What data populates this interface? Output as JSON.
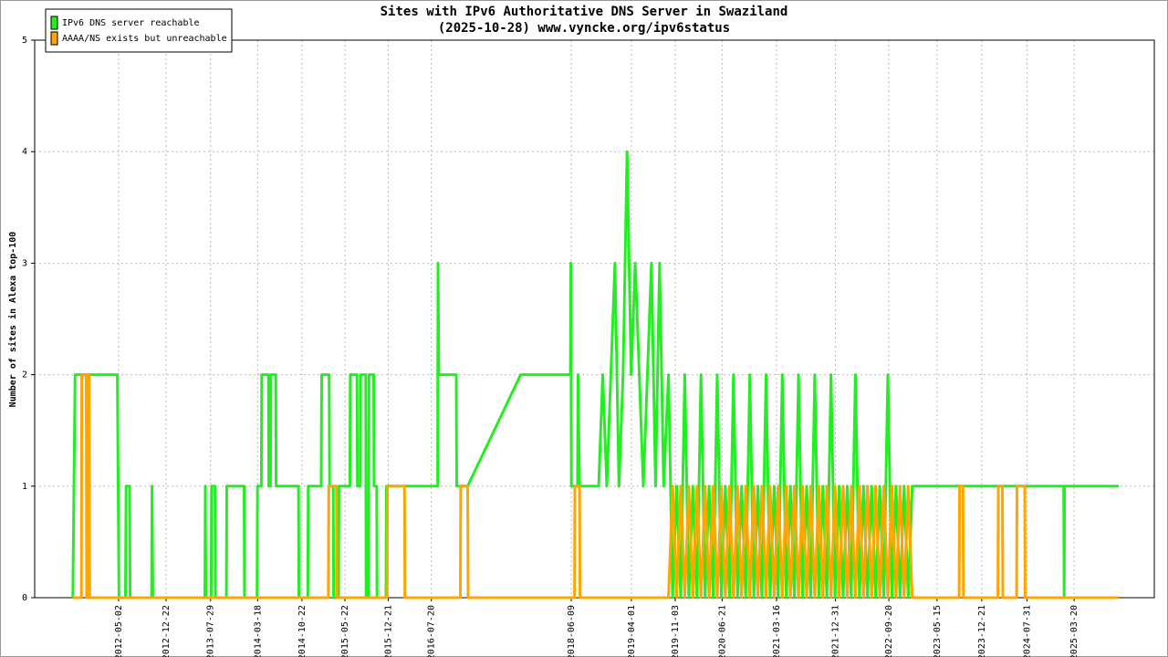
{
  "chart_data": {
    "type": "line",
    "title": "Sites with IPv6 Authoritative DNS Server in Swaziland",
    "subtitle": "(2025-10-28) www.vyncke.org/ipv6status",
    "y_label": "Number of sites in Alexa top-100",
    "xlim": [
      "2011-03-16",
      "2026-04-19"
    ],
    "xticks": [
      "2012-05-02",
      "2012-12-22",
      "2013-07-29",
      "2014-03-18",
      "2014-10-22",
      "2015-05-22",
      "2015-12-21",
      "2016-07-20",
      "2018-06-09",
      "2019-04-01",
      "2019-11-03",
      "2020-06-21",
      "2021-03-16",
      "2021-12-31",
      "2022-09-20",
      "2023-05-15",
      "2023-12-21",
      "2024-07-31",
      "2025-03-20"
    ],
    "ylim": [
      0,
      5
    ],
    "yticks": [
      0,
      1,
      2,
      3,
      4,
      5
    ],
    "grid": true,
    "legend": "upper left",
    "series": [
      {
        "name": "IPv6 DNS server reachable",
        "color": "#22ee22",
        "x": [
          "2011-09-20",
          "2011-10-01",
          "2012-04-26",
          "2012-05-04",
          "2012-06-05",
          "2012-06-08",
          "2012-06-25",
          "2012-06-28",
          "2012-10-12",
          "2012-10-14",
          "2012-10-18",
          "2013-07-01",
          "2013-07-03",
          "2013-07-06",
          "2013-08-01",
          "2013-08-03",
          "2013-08-20",
          "2013-08-22",
          "2013-10-15",
          "2013-10-17",
          "2014-01-10",
          "2014-01-12",
          "2014-03-15",
          "2014-03-17",
          "2014-04-05",
          "2014-04-07",
          "2014-05-10",
          "2014-05-12",
          "2014-05-20",
          "2014-05-22",
          "2014-06-15",
          "2014-06-17",
          "2014-10-05",
          "2014-10-07",
          "2014-11-20",
          "2014-11-22",
          "2015-01-25",
          "2015-01-27",
          "2015-03-05",
          "2015-03-07",
          "2015-03-25",
          "2015-03-27",
          "2015-04-20",
          "2015-04-22",
          "2015-06-15",
          "2015-06-17",
          "2015-07-20",
          "2015-07-22",
          "2015-08-05",
          "2015-08-07",
          "2015-09-01",
          "2015-09-03",
          "2015-09-15",
          "2015-09-17",
          "2015-10-10",
          "2015-10-12",
          "2015-10-25",
          "2015-10-27",
          "2015-12-10",
          "2015-12-12",
          "2016-08-20",
          "2016-08-22",
          "2016-08-26",
          "2016-11-20",
          "2016-11-22",
          "2017-01-15",
          "2017-10-03",
          "2018-06-05",
          "2018-06-07",
          "2018-06-10",
          "2018-07-10",
          "2018-07-12",
          "2018-07-20",
          "2018-10-22",
          "2018-11-11",
          "2018-12-01",
          "2018-12-21",
          "2019-01-10",
          "2019-01-30",
          "2019-02-19",
          "2019-03-11",
          "2019-03-31",
          "2019-04-20",
          "2019-05-10",
          "2019-05-30",
          "2019-06-19",
          "2019-07-09",
          "2019-07-29",
          "2019-08-18",
          "2019-09-07",
          "2019-10-01",
          "2019-10-21",
          "2019-11-10",
          "2019-11-30",
          "2019-12-20",
          "2020-01-09",
          "2020-01-29",
          "2020-02-18",
          "2020-03-09",
          "2020-03-29",
          "2020-04-18",
          "2020-05-08",
          "2020-05-28",
          "2020-06-17",
          "2020-07-07",
          "2020-07-27",
          "2020-08-16",
          "2020-09-05",
          "2020-09-25",
          "2020-10-15",
          "2020-11-04",
          "2020-11-24",
          "2020-12-14",
          "2021-01-03",
          "2021-01-23",
          "2021-02-12",
          "2021-03-04",
          "2021-03-24",
          "2021-04-13",
          "2021-05-03",
          "2021-05-23",
          "2021-06-12",
          "2021-07-02",
          "2021-07-22",
          "2021-08-11",
          "2021-08-31",
          "2021-09-20",
          "2021-10-10",
          "2021-10-30",
          "2021-11-19",
          "2021-12-09",
          "2021-12-29",
          "2022-01-18",
          "2022-02-07",
          "2022-02-27",
          "2022-03-19",
          "2022-04-08",
          "2022-04-28",
          "2022-05-18",
          "2022-06-07",
          "2022-06-27",
          "2022-07-17",
          "2022-08-06",
          "2022-08-26",
          "2022-09-15",
          "2022-10-05",
          "2022-10-25",
          "2022-11-14",
          "2022-12-04",
          "2022-12-24",
          "2023-01-13",
          "2025-01-28",
          "2025-01-30",
          "2025-02-01",
          "2025-10-26"
        ],
        "values": [
          0,
          2,
          2,
          0,
          0,
          1,
          1,
          0,
          0,
          1,
          0,
          0,
          1,
          0,
          0,
          1,
          1,
          0,
          0,
          1,
          1,
          0,
          0,
          1,
          1,
          2,
          2,
          1,
          1,
          2,
          2,
          1,
          1,
          0,
          0,
          1,
          1,
          2,
          2,
          1,
          1,
          0,
          0,
          1,
          1,
          2,
          2,
          1,
          1,
          2,
          2,
          0,
          0,
          2,
          2,
          1,
          1,
          0,
          0,
          1,
          1,
          3,
          2,
          2,
          1,
          1,
          2,
          2,
          3,
          1,
          1,
          2,
          1,
          1,
          2,
          1,
          2,
          3,
          1,
          2,
          4,
          2,
          3,
          2,
          1,
          2,
          3,
          1,
          3,
          1,
          2,
          0,
          1,
          0,
          2,
          0,
          1,
          0,
          2,
          0,
          1,
          0,
          2,
          0,
          1,
          0,
          2,
          0,
          1,
          0,
          2,
          0,
          1,
          0,
          2,
          0,
          1,
          0,
          2,
          0,
          1,
          0,
          2,
          0,
          1,
          0,
          2,
          0,
          1,
          0,
          2,
          0,
          1,
          0,
          1,
          0,
          2,
          0,
          1,
          0,
          1,
          0,
          1,
          0,
          2,
          0,
          1,
          0,
          1,
          0,
          1,
          1,
          0,
          1,
          1
        ]
      },
      {
        "name": "AAAA/NS exists but unreachable",
        "color": "#ffa500",
        "x": [
          "2011-09-20",
          "2011-11-01",
          "2011-11-03",
          "2011-11-25",
          "2011-11-27",
          "2011-12-01",
          "2011-12-03",
          "2011-12-10",
          "2011-12-12",
          "2015-03-01",
          "2015-03-03",
          "2015-04-10",
          "2015-04-12",
          "2015-12-15",
          "2015-12-17",
          "2016-03-10",
          "2016-03-12",
          "2016-12-10",
          "2016-12-12",
          "2017-01-15",
          "2017-01-17",
          "2018-06-25",
          "2018-06-27",
          "2018-07-20",
          "2018-07-22",
          "2019-10-01",
          "2019-10-21",
          "2019-11-10",
          "2019-11-30",
          "2019-12-20",
          "2020-01-09",
          "2020-01-29",
          "2020-02-18",
          "2020-03-09",
          "2020-03-29",
          "2020-04-18",
          "2020-05-08",
          "2020-05-28",
          "2020-06-17",
          "2020-07-07",
          "2020-07-27",
          "2020-08-16",
          "2020-09-05",
          "2020-09-25",
          "2020-10-15",
          "2020-11-04",
          "2020-11-24",
          "2020-12-14",
          "2021-01-03",
          "2021-01-23",
          "2021-02-12",
          "2021-03-04",
          "2021-03-24",
          "2021-04-13",
          "2021-05-03",
          "2021-05-23",
          "2021-06-12",
          "2021-07-02",
          "2021-07-22",
          "2021-08-11",
          "2021-08-31",
          "2021-09-20",
          "2021-10-10",
          "2021-10-30",
          "2021-11-19",
          "2021-12-09",
          "2021-12-29",
          "2022-01-18",
          "2022-02-07",
          "2022-02-27",
          "2022-03-19",
          "2022-04-08",
          "2022-04-28",
          "2022-05-18",
          "2022-06-07",
          "2022-06-27",
          "2022-07-17",
          "2022-08-06",
          "2022-08-26",
          "2022-09-15",
          "2022-10-05",
          "2022-10-25",
          "2022-11-14",
          "2022-12-04",
          "2022-12-24",
          "2023-01-13",
          "2023-09-01",
          "2023-09-03",
          "2023-09-20",
          "2023-09-22",
          "2024-03-10",
          "2024-03-12",
          "2024-04-01",
          "2024-04-03",
          "2024-06-10",
          "2024-06-12",
          "2024-07-20",
          "2024-07-22",
          "2025-10-26"
        ],
        "values": [
          0,
          0,
          2,
          2,
          0,
          0,
          2,
          2,
          0,
          0,
          1,
          1,
          0,
          0,
          1,
          1,
          0,
          0,
          1,
          1,
          0,
          0,
          1,
          1,
          0,
          0,
          1,
          0,
          1,
          0,
          1,
          0,
          1,
          0,
          1,
          0,
          1,
          0,
          1,
          0,
          1,
          0,
          1,
          0,
          1,
          0,
          1,
          0,
          1,
          0,
          1,
          0,
          1,
          0,
          1,
          0,
          1,
          0,
          1,
          0,
          1,
          0,
          1,
          0,
          1,
          0,
          1,
          0,
          1,
          0,
          1,
          0,
          1,
          0,
          1,
          0,
          1,
          0,
          1,
          0,
          1,
          0,
          1,
          0,
          1,
          0,
          0,
          1,
          1,
          0,
          0,
          1,
          1,
          0,
          0,
          1,
          1,
          0,
          0
        ]
      }
    ]
  }
}
